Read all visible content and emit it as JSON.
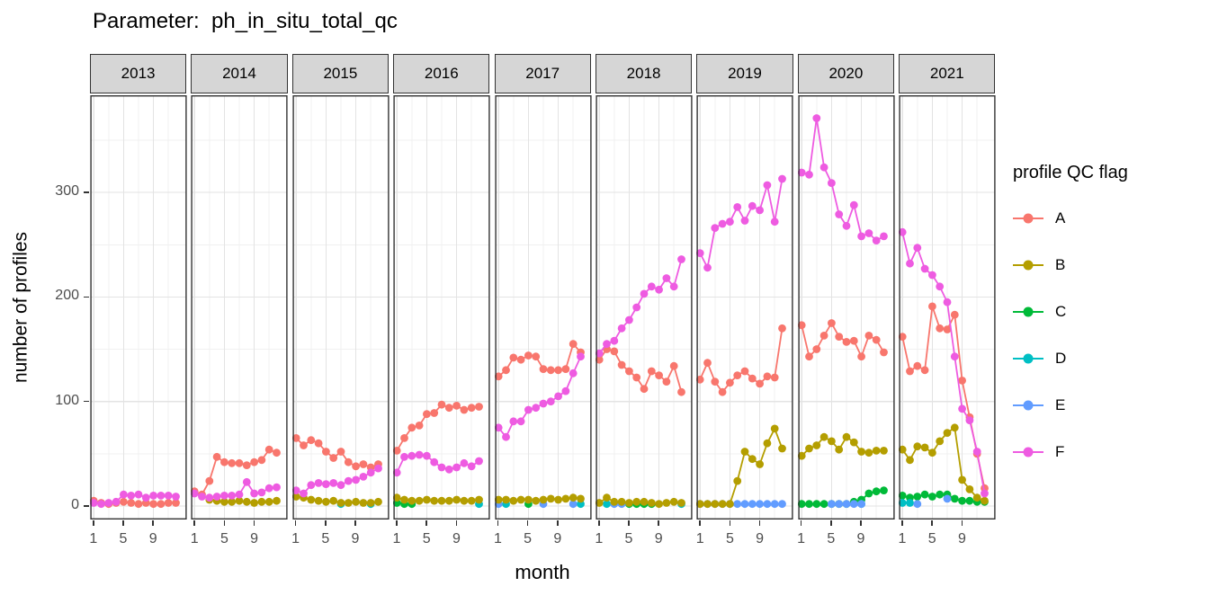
{
  "title": "Parameter:  ph_in_situ_total_qc",
  "x_axis": {
    "label": "month",
    "ticks": [
      "1",
      "5",
      "9"
    ],
    "tick_months": [
      1,
      5,
      9
    ]
  },
  "y_axis": {
    "label": "number of profiles",
    "ticks": [
      "0",
      "100",
      "200",
      "300"
    ],
    "tick_values": [
      0,
      100,
      200,
      300
    ]
  },
  "legend": {
    "title": "profile QC flag",
    "entries": [
      {
        "label": "A",
        "color": "#F8766D"
      },
      {
        "label": "B",
        "color": "#B49E00"
      },
      {
        "label": "C",
        "color": "#00BA38"
      },
      {
        "label": "D",
        "color": "#00BFC4"
      },
      {
        "label": "E",
        "color": "#619CFF"
      },
      {
        "label": "F",
        "color": "#EE5BE1"
      }
    ]
  },
  "chart_data": {
    "type": "line",
    "faceted_by": "year",
    "x_label": "month",
    "y_label": "number of profiles",
    "months": [
      1,
      2,
      3,
      4,
      5,
      6,
      7,
      8,
      9,
      10,
      11,
      12
    ],
    "y_range_shown": [
      0,
      391
    ],
    "gridlines": {
      "x_major_months": [
        1,
        5,
        9
      ],
      "x_minor_months": [
        3,
        7,
        11
      ],
      "y_major": [
        0,
        100,
        200,
        300
      ],
      "y_minor": [
        50,
        150,
        250,
        350
      ]
    },
    "draw_order": [
      "C",
      "D",
      "E",
      "B",
      "A",
      "F"
    ],
    "facets": [
      {
        "year": "2013",
        "series": {
          "A": [
            5,
            3,
            2,
            3,
            4,
            3,
            2,
            3,
            2,
            2,
            3,
            3
          ],
          "F": [
            3,
            2,
            3,
            4,
            11,
            10,
            11,
            8,
            10,
            10,
            10,
            9
          ]
        }
      },
      {
        "year": "2014",
        "series": {
          "A": [
            14,
            11,
            24,
            47,
            42,
            41,
            41,
            39,
            42,
            44,
            54,
            51
          ],
          "B": [
            null,
            null,
            6,
            5,
            4,
            4,
            5,
            4,
            3,
            4,
            4,
            5
          ],
          "F": [
            12,
            9,
            8,
            9,
            10,
            10,
            11,
            23,
            12,
            13,
            17,
            18
          ]
        }
      },
      {
        "year": "2015",
        "series": {
          "A": [
            65,
            58,
            63,
            60,
            52,
            46,
            52,
            42,
            38,
            40,
            37,
            40
          ],
          "B": [
            9,
            8,
            6,
            5,
            4,
            5,
            3,
            3,
            4,
            3,
            3,
            4
          ],
          "D": [
            null,
            null,
            null,
            null,
            null,
            null,
            2,
            null,
            null,
            null,
            2,
            null
          ],
          "F": [
            15,
            12,
            20,
            22,
            21,
            22,
            20,
            24,
            25,
            28,
            32,
            36
          ]
        }
      },
      {
        "year": "2016",
        "series": {
          "A": [
            53,
            65,
            75,
            77,
            88,
            89,
            97,
            94,
            96,
            92,
            94,
            95
          ],
          "B": [
            8,
            6,
            5,
            5,
            6,
            5,
            5,
            5,
            6,
            5,
            5,
            6
          ],
          "C": [
            3,
            2,
            2,
            null,
            null,
            null,
            null,
            null,
            null,
            null,
            null,
            null
          ],
          "D": [
            null,
            null,
            null,
            null,
            null,
            null,
            null,
            null,
            null,
            null,
            null,
            2
          ],
          "F": [
            32,
            47,
            48,
            49,
            48,
            42,
            37,
            35,
            37,
            41,
            38,
            43
          ]
        }
      },
      {
        "year": "2017",
        "series": {
          "A": [
            124,
            130,
            142,
            140,
            144,
            143,
            131,
            130,
            130,
            131,
            155,
            147
          ],
          "B": [
            6,
            6,
            5,
            6,
            6,
            5,
            6,
            7,
            6,
            7,
            8,
            7
          ],
          "C": [
            null,
            null,
            null,
            null,
            2,
            null,
            null,
            null,
            null,
            null,
            null,
            null
          ],
          "D": [
            null,
            2,
            null,
            null,
            null,
            null,
            null,
            null,
            null,
            null,
            null,
            2
          ],
          "E": [
            2,
            null,
            null,
            null,
            null,
            null,
            2,
            null,
            null,
            null,
            2,
            null
          ],
          "F": [
            75,
            66,
            81,
            81,
            92,
            94,
            98,
            100,
            105,
            110,
            127,
            143
          ]
        }
      },
      {
        "year": "2018",
        "series": {
          "A": [
            140,
            150,
            148,
            135,
            129,
            123,
            112,
            129,
            125,
            119,
            134,
            109
          ],
          "B": [
            3,
            8,
            4,
            4,
            3,
            4,
            4,
            3,
            2,
            3,
            4,
            3
          ],
          "C": [
            null,
            null,
            null,
            null,
            2,
            2,
            2,
            2,
            null,
            null,
            null,
            null
          ],
          "D": [
            null,
            2,
            null,
            null,
            null,
            null,
            null,
            null,
            null,
            null,
            null,
            2
          ],
          "E": [
            null,
            null,
            2,
            2,
            null,
            null,
            null,
            null,
            null,
            null,
            null,
            null
          ],
          "F": [
            146,
            155,
            158,
            170,
            178,
            190,
            203,
            210,
            207,
            218,
            210,
            236
          ]
        }
      },
      {
        "year": "2019",
        "series": {
          "A": [
            121,
            137,
            119,
            109,
            118,
            125,
            129,
            122,
            117,
            124,
            123,
            170
          ],
          "B": [
            2,
            2,
            2,
            2,
            2,
            24,
            52,
            45,
            40,
            60,
            74,
            55
          ],
          "E": [
            2,
            2,
            2,
            2,
            2,
            2,
            2,
            2,
            2,
            2,
            2,
            2
          ],
          "F": [
            242,
            228,
            266,
            270,
            272,
            286,
            273,
            287,
            283,
            307,
            272,
            313
          ]
        }
      },
      {
        "year": "2020",
        "series": {
          "A": [
            173,
            143,
            150,
            163,
            175,
            162,
            157,
            158,
            143,
            163,
            159,
            147
          ],
          "B": [
            48,
            55,
            58,
            66,
            62,
            54,
            66,
            61,
            52,
            51,
            53,
            53
          ],
          "C": [
            2,
            2,
            2,
            2,
            2,
            2,
            2,
            4,
            6,
            12,
            14,
            15
          ],
          "D": [
            null,
            null,
            null,
            null,
            null,
            null,
            null,
            null,
            2,
            null,
            null,
            null
          ],
          "E": [
            null,
            null,
            null,
            null,
            2,
            2,
            2,
            2,
            2,
            null,
            null,
            null
          ],
          "F": [
            319,
            317,
            371,
            324,
            309,
            279,
            268,
            288,
            258,
            261,
            254,
            258
          ]
        }
      },
      {
        "year": "2021",
        "series": {
          "A": [
            162,
            129,
            134,
            130,
            191,
            170,
            169,
            183,
            120,
            85,
            50,
            17
          ],
          "B": [
            54,
            44,
            57,
            56,
            51,
            62,
            70,
            75,
            25,
            16,
            8,
            5
          ],
          "C": [
            10,
            8,
            9,
            11,
            9,
            11,
            11,
            7,
            5,
            5,
            4,
            4
          ],
          "D": [
            3,
            3,
            null,
            null,
            null,
            null,
            null,
            null,
            null,
            null,
            null,
            null
          ],
          "E": [
            null,
            null,
            2,
            null,
            null,
            null,
            7,
            null,
            null,
            null,
            null,
            null
          ],
          "F": [
            262,
            232,
            247,
            227,
            221,
            210,
            195,
            143,
            93,
            82,
            52,
            12
          ]
        }
      }
    ]
  }
}
